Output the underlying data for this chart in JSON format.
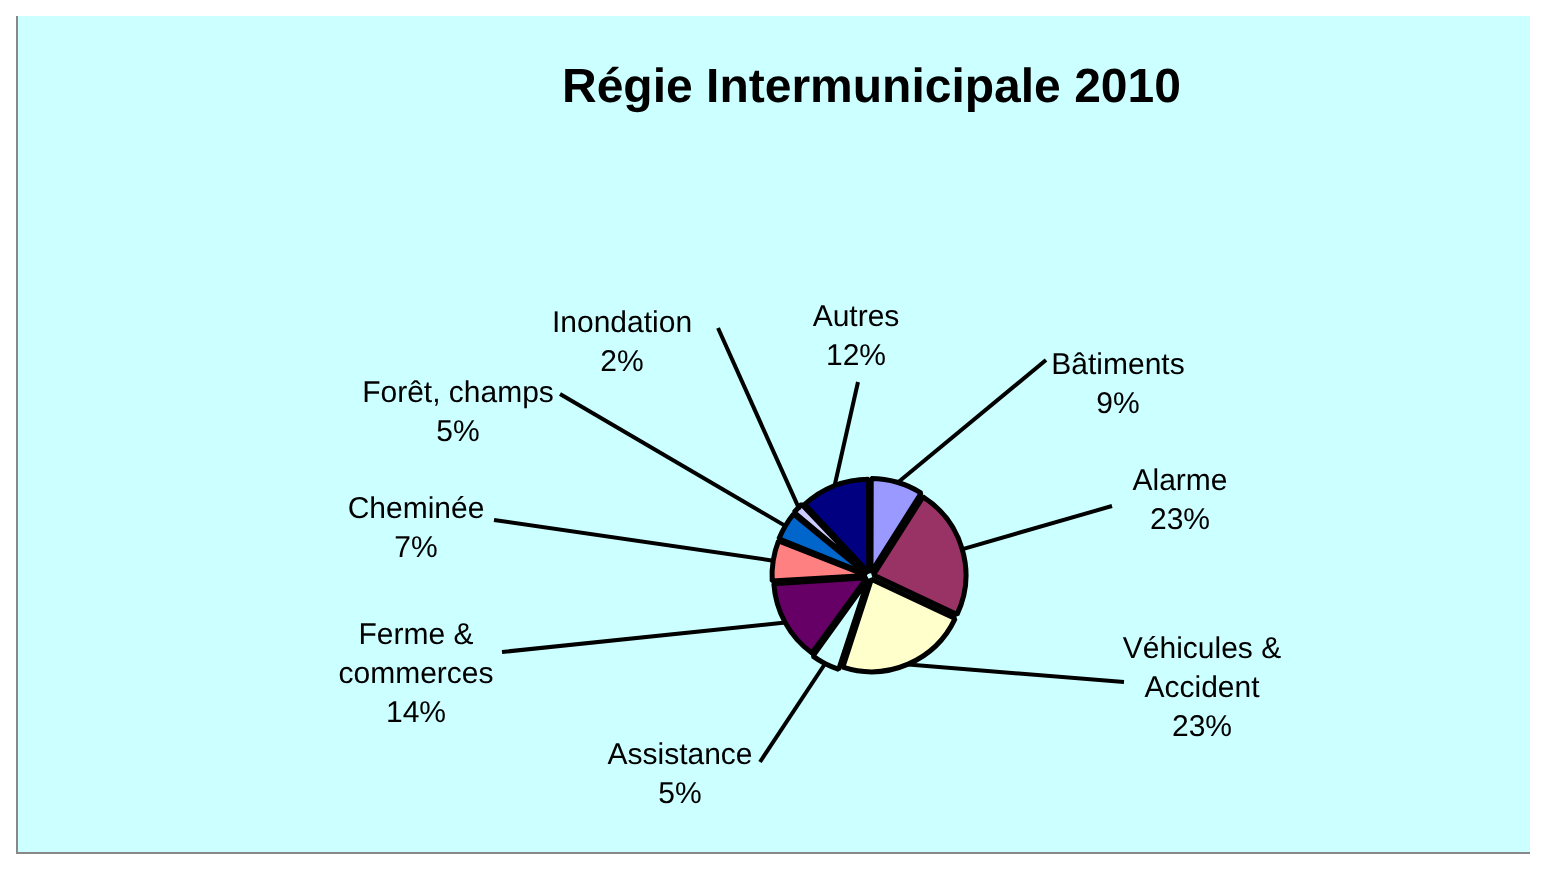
{
  "chart_data": {
    "type": "pie",
    "title": "Régie Intermunicipale 2010",
    "categories": [
      "Bâtiments",
      "Alarme",
      "Véhicules & Accident",
      "Assistance",
      "Ferme & commerces",
      "Cheminée",
      "Forêt, champs",
      "Inondation",
      "Autres"
    ],
    "values": [
      9,
      23,
      23,
      5,
      14,
      7,
      5,
      2,
      12
    ],
    "colors": [
      "#9999ff",
      "#993366",
      "#ffffcc",
      "#ccffff",
      "#660066",
      "#ff8080",
      "#0066cc",
      "#ccccff",
      "#000080"
    ],
    "value_labels": [
      "9%",
      "23%",
      "23%",
      "5%",
      "14%",
      "7%",
      "5%",
      "2%",
      "12%"
    ],
    "legend": false
  }
}
